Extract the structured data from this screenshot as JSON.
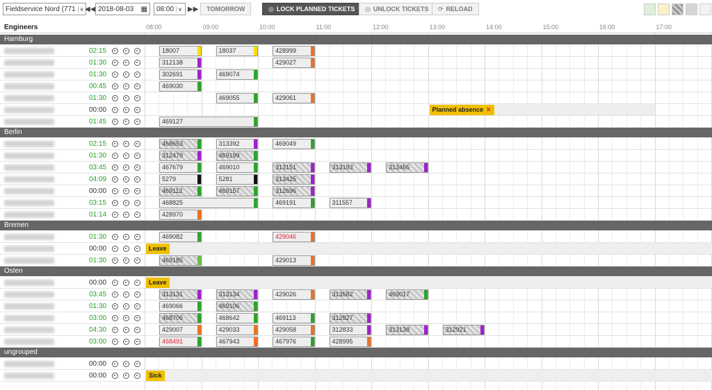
{
  "toolbar": {
    "region_select": "Fieldservice Nord (771",
    "date": "2018-08-03",
    "time": "08:00",
    "tomorrow_label": "TOMORROW",
    "lock_label": "LOCK PLANNED TICKETS",
    "unlock_label": "UNLOCK TICKETS",
    "reload_label": "RELOAD",
    "swatch_colors": [
      "#dff0dc",
      "#fbf0c8",
      "#b0b0b0",
      "#d6d6d6",
      "#f2f2f2"
    ]
  },
  "header": {
    "engineers_label": "Engineers",
    "hours": [
      "08:00",
      "09:00",
      "10:00",
      "11:00",
      "12:00",
      "13:00",
      "14:00",
      "15:00",
      "16:00",
      "17:00"
    ]
  },
  "status_colors": {
    "yellow": "#f7e000",
    "purple": "#a020d0",
    "green": "#2aa52a",
    "orange": "#f07020",
    "black": "#111111",
    "lightgreen": "#6cc04a"
  },
  "groups": [
    {
      "name": "Hamburg",
      "rows": [
        {
          "time": "02:15",
          "time_color": "green",
          "tickets": [
            {
              "id": "18007",
              "start": 0,
              "end": 1,
              "color": "yellow"
            },
            {
              "id": "18037",
              "start": 1,
              "end": 2,
              "color": "yellow"
            },
            {
              "id": "428999",
              "start": 2,
              "end": 3,
              "color": "orange"
            }
          ]
        },
        {
          "time": "01:30",
          "time_color": "green",
          "tickets": [
            {
              "id": "312138",
              "start": 0,
              "end": 1,
              "color": "purple"
            },
            {
              "id": "429027",
              "start": 2,
              "end": 3,
              "color": "orange"
            }
          ]
        },
        {
          "time": "01:30",
          "time_color": "green",
          "tickets": [
            {
              "id": "302691",
              "start": 0,
              "end": 1,
              "color": "purple"
            },
            {
              "id": "469074",
              "start": 1,
              "end": 2,
              "color": "green"
            }
          ]
        },
        {
          "time": "00:45",
          "time_color": "green",
          "tickets": [
            {
              "id": "469030",
              "start": 0,
              "end": 1,
              "color": "green"
            }
          ]
        },
        {
          "time": "01:30",
          "time_color": "green",
          "tickets": [
            {
              "id": "469055",
              "start": 1,
              "end": 2,
              "color": "green"
            },
            {
              "id": "429061",
              "start": 2,
              "end": 3,
              "color": "orange"
            }
          ]
        },
        {
          "time": "00:00",
          "time_color": "black",
          "tickets": [],
          "absence": {
            "label": "Planned absence",
            "start": 5,
            "end": 9
          }
        },
        {
          "time": "01:45",
          "time_color": "green",
          "tickets": [
            {
              "id": "469127",
              "start": 0,
              "end": 2,
              "color": "green"
            }
          ]
        }
      ]
    },
    {
      "name": "Berlin",
      "rows": [
        {
          "time": "02:15",
          "time_color": "green",
          "tickets": [
            {
              "id": "468653",
              "start": 0,
              "end": 1,
              "color": "green",
              "hatched": true
            },
            {
              "id": "313392",
              "start": 1,
              "end": 2,
              "color": "purple"
            },
            {
              "id": "469049",
              "start": 2,
              "end": 3,
              "color": "green"
            }
          ]
        },
        {
          "time": "01:30",
          "time_color": "green",
          "tickets": [
            {
              "id": "312479",
              "start": 0,
              "end": 1,
              "color": "purple",
              "hatched": true
            },
            {
              "id": "469199",
              "start": 1,
              "end": 2,
              "color": "green",
              "hatched": true
            }
          ]
        },
        {
          "time": "03:45",
          "time_color": "green",
          "tickets": [
            {
              "id": "467679",
              "start": 0,
              "end": 1,
              "color": "green"
            },
            {
              "id": "469010",
              "start": 1,
              "end": 2,
              "color": "green"
            },
            {
              "id": "313151",
              "start": 2,
              "end": 3,
              "color": "purple",
              "hatched": true
            },
            {
              "id": "313193",
              "start": 3,
              "end": 4,
              "color": "purple",
              "hatched": true
            },
            {
              "id": "313465",
              "start": 4,
              "end": 5,
              "color": "purple",
              "hatched": true
            }
          ]
        },
        {
          "time": "04:09",
          "time_color": "green",
          "tickets": [
            {
              "id": "5279",
              "start": 0,
              "end": 1,
              "color": "black"
            },
            {
              "id": "5281",
              "start": 1,
              "end": 2,
              "color": "black"
            },
            {
              "id": "313425",
              "start": 2,
              "end": 3,
              "color": "purple",
              "hatched": true
            }
          ]
        },
        {
          "time": "00:00",
          "time_color": "black",
          "tickets": [
            {
              "id": "469112",
              "start": 0,
              "end": 1,
              "color": "green",
              "hatched": true
            },
            {
              "id": "469157",
              "start": 1,
              "end": 2,
              "color": "green",
              "hatched": true
            },
            {
              "id": "312696",
              "start": 2,
              "end": 3,
              "color": "purple",
              "hatched": true
            }
          ]
        },
        {
          "time": "03:15",
          "time_color": "green",
          "tickets": [
            {
              "id": "468825",
              "start": 0,
              "end": 2,
              "color": "green"
            },
            {
              "id": "469191",
              "start": 2,
              "end": 3,
              "color": "green"
            },
            {
              "id": "311557",
              "start": 3,
              "end": 4,
              "color": "purple"
            }
          ]
        },
        {
          "time": "01:14",
          "time_color": "green",
          "tickets": [
            {
              "id": "428970",
              "start": 0,
              "end": 1,
              "color": "orange"
            }
          ]
        }
      ]
    },
    {
      "name": "Bremen",
      "rows": [
        {
          "time": "01:30",
          "time_color": "green",
          "tickets": [
            {
              "id": "469082",
              "start": 0,
              "end": 1,
              "color": "green"
            },
            {
              "id": "429046",
              "start": 2,
              "end": 3,
              "color": "orange",
              "red": true
            }
          ]
        },
        {
          "time": "00:00",
          "time_color": "black",
          "tickets": [],
          "absence": {
            "label": "Leave",
            "start": 0,
            "end": null
          }
        },
        {
          "time": "01:30",
          "time_color": "green",
          "tickets": [
            {
              "id": "469185",
              "start": 0,
              "end": 1,
              "color": "lightgreen",
              "hatched": true
            },
            {
              "id": "429013",
              "start": 2,
              "end": 3,
              "color": "orange"
            }
          ]
        }
      ]
    },
    {
      "name": "Osten",
      "rows": [
        {
          "time": "00:00",
          "time_color": "black",
          "tickets": [],
          "absence": {
            "label": "Leave",
            "start": 0,
            "end": null
          }
        },
        {
          "time": "03:45",
          "time_color": "green",
          "tickets": [
            {
              "id": "313131",
              "start": 0,
              "end": 1,
              "color": "purple",
              "hatched": true
            },
            {
              "id": "313134",
              "start": 1,
              "end": 2,
              "color": "purple",
              "hatched": true
            },
            {
              "id": "429026",
              "start": 2,
              "end": 3,
              "color": "orange"
            },
            {
              "id": "313582",
              "start": 3,
              "end": 4,
              "color": "purple",
              "hatched": true
            },
            {
              "id": "469017",
              "start": 4,
              "end": 5,
              "color": "green",
              "hatched": true
            }
          ]
        },
        {
          "time": "01:30",
          "time_color": "green",
          "tickets": [
            {
              "id": "469066",
              "start": 0,
              "end": 1,
              "color": "green"
            },
            {
              "id": "469106",
              "start": 1,
              "end": 2,
              "color": "green",
              "hatched": true
            }
          ]
        },
        {
          "time": "03:00",
          "time_color": "green",
          "tickets": [
            {
              "id": "468706",
              "start": 0,
              "end": 1,
              "color": "green",
              "hatched": true
            },
            {
              "id": "468642",
              "start": 1,
              "end": 2,
              "color": "green"
            },
            {
              "id": "469113",
              "start": 2,
              "end": 3,
              "color": "green"
            },
            {
              "id": "312827",
              "start": 3,
              "end": 4,
              "color": "purple",
              "hatched": true
            }
          ]
        },
        {
          "time": "04:30",
          "time_color": "green",
          "tickets": [
            {
              "id": "429007",
              "start": 0,
              "end": 1,
              "color": "orange"
            },
            {
              "id": "429033",
              "start": 1,
              "end": 2,
              "color": "orange"
            },
            {
              "id": "429058",
              "start": 2,
              "end": 3,
              "color": "orange"
            },
            {
              "id": "312833",
              "start": 3,
              "end": 4,
              "color": "purple"
            },
            {
              "id": "313138",
              "start": 4,
              "end": 5,
              "color": "purple",
              "hatched": true
            },
            {
              "id": "312921",
              "start": 5,
              "end": 6,
              "color": "purple",
              "hatched": true
            }
          ]
        },
        {
          "time": "03:00",
          "time_color": "green",
          "tickets": [
            {
              "id": "468491",
              "start": 0,
              "end": 1,
              "color": "green",
              "red": true
            },
            {
              "id": "467943",
              "start": 1,
              "end": 2,
              "color": "orange"
            },
            {
              "id": "467976",
              "start": 2,
              "end": 3,
              "color": "green"
            },
            {
              "id": "428995",
              "start": 3,
              "end": 4,
              "color": "orange"
            }
          ]
        }
      ]
    },
    {
      "name": "ungrouped",
      "rows": [
        {
          "time": "00:00",
          "time_color": "black",
          "tickets": []
        },
        {
          "time": "00:00",
          "time_color": "black",
          "tickets": [],
          "absence": {
            "label": "Sick",
            "start": 0,
            "end": null
          }
        }
      ]
    }
  ]
}
